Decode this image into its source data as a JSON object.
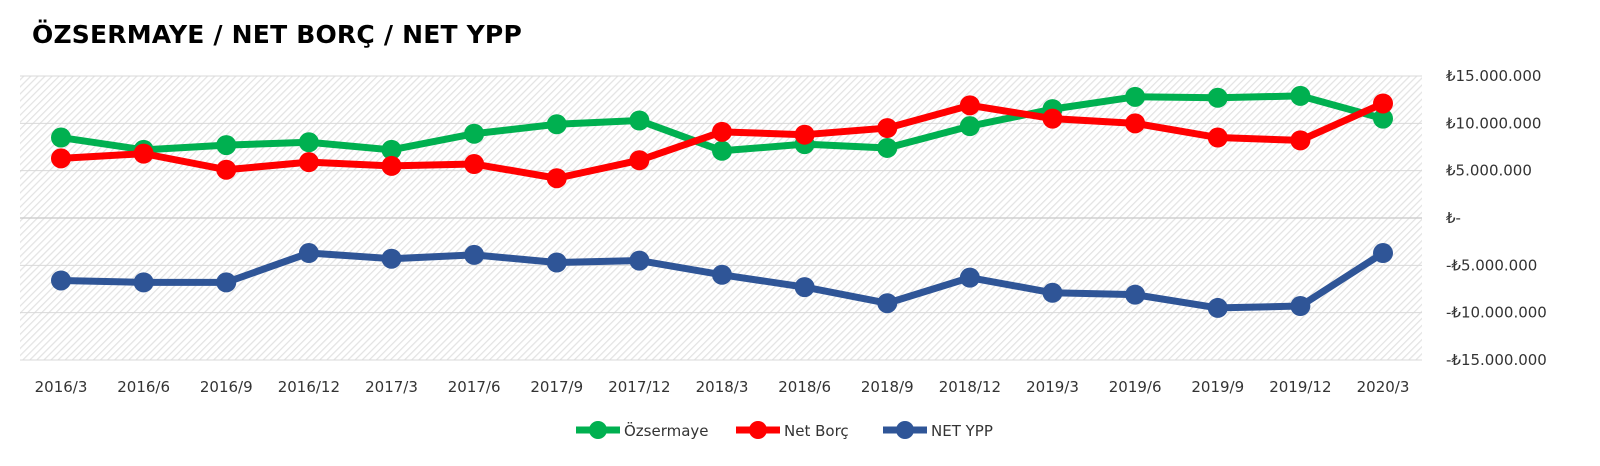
{
  "chart_data": {
    "type": "line",
    "title": "ÖZSERMAYE / NET BORÇ / NET YPP",
    "xlabel": "",
    "ylabel": "",
    "categories": [
      "2016/3",
      "2016/6",
      "2016/9",
      "2016/12",
      "2017/3",
      "2017/6",
      "2017/9",
      "2017/12",
      "2018/3",
      "2018/6",
      "2018/9",
      "2018/12",
      "2019/3",
      "2019/6",
      "2019/9",
      "2019/12",
      "2020/3"
    ],
    "ylim": [
      -15000000,
      15000000
    ],
    "yticks": [
      15000000,
      10000000,
      5000000,
      0,
      -5000000,
      -10000000,
      -15000000
    ],
    "ytick_labels": [
      "₺15.000.000",
      "₺10.000.000",
      "₺5.000.000",
      "₺-",
      "-₺5.000.000",
      "-₺10.000.000",
      "-₺15.000.000"
    ],
    "grid": true,
    "legend_position": "bottom",
    "series": [
      {
        "name": "Özsermaye",
        "color": "#00b050",
        "values": [
          8500000,
          7200000,
          7700000,
          8000000,
          7200000,
          8900000,
          9900000,
          10300000,
          7100000,
          7800000,
          7400000,
          9700000,
          11500000,
          12800000,
          12700000,
          12900000,
          10500000
        ]
      },
      {
        "name": "Net Borç",
        "color": "#ff0000",
        "values": [
          6300000,
          6800000,
          5100000,
          5900000,
          5500000,
          5700000,
          4200000,
          6100000,
          9100000,
          8800000,
          9500000,
          11900000,
          10500000,
          10000000,
          8500000,
          8200000,
          12100000
        ]
      },
      {
        "name": "NET YPP",
        "color": "#2f5597",
        "values": [
          -6600000,
          -6800000,
          -6800000,
          -3700000,
          -4300000,
          -3900000,
          -4700000,
          -4500000,
          -6000000,
          -7300000,
          -9000000,
          -6300000,
          -7900000,
          -8100000,
          -9500000,
          -9300000,
          -3700000
        ]
      }
    ]
  }
}
